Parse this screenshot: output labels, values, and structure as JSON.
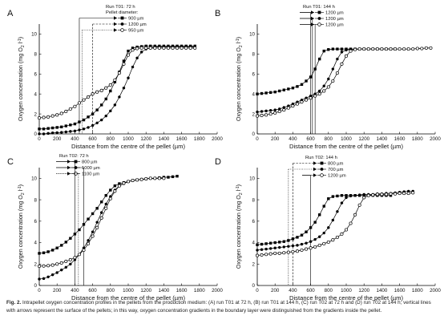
{
  "figure": {
    "caption_label": "Fig. 2.",
    "caption_text": "Intrapellet oxygen concentration profiles in the pellets from the production medium: (A) run T01 at 72 h, (B) run T01 at 144 h, (C) run T02 at 72 h and (D) run T02 at 144 h; vertical lines with arrows represent the surface of the pellets; in this way, oxygen concentration gradients in the boundary layer were distinguished from the gradients inside the pellet."
  },
  "chart_data": [
    {
      "type": "line",
      "panel_label": "A",
      "legend_title": "Run T01: 72 h",
      "legend_subtitle": "Pellet diameter:",
      "xlabel": "Distance from the centre of the pellet (µm)",
      "ylabel": "Oxygen concentration (mg O2 l-1)",
      "xlim": [
        0,
        2000
      ],
      "ylim": [
        0,
        11
      ],
      "xticks": [
        "0",
        "200",
        "400",
        "600",
        "800",
        "1000",
        "1200",
        "1400",
        "1600",
        "1800",
        "2000"
      ],
      "yticks": [
        "0",
        "2",
        "4",
        "6",
        "8",
        "10"
      ],
      "series": [
        {
          "name": "900 µm",
          "marker": "square",
          "surface": 450,
          "x": [
            0,
            50,
            100,
            150,
            200,
            250,
            300,
            350,
            400,
            450,
            500,
            550,
            600,
            650,
            700,
            750,
            800,
            850,
            900,
            950,
            1000,
            1050,
            1100,
            1150,
            1200,
            1250,
            1300,
            1350,
            1400,
            1450,
            1500,
            1550,
            1600,
            1650,
            1700,
            1750
          ],
          "y": [
            0.5,
            0.5,
            0.55,
            0.6,
            0.65,
            0.7,
            0.8,
            0.9,
            1.0,
            1.2,
            1.4,
            1.7,
            2.0,
            2.4,
            2.9,
            3.5,
            4.3,
            5.2,
            6.2,
            7.3,
            8.3,
            8.6,
            8.7,
            8.75,
            8.8,
            8.8,
            8.8,
            8.8,
            8.8,
            8.8,
            8.8,
            8.8,
            8.8,
            8.8,
            8.8,
            8.8
          ]
        },
        {
          "name": "1200 µm",
          "marker": "circle-filled",
          "surface": 600,
          "x": [
            0,
            50,
            100,
            150,
            200,
            250,
            300,
            350,
            400,
            450,
            500,
            550,
            600,
            650,
            700,
            750,
            800,
            850,
            900,
            950,
            1000,
            1050,
            1100,
            1150,
            1200,
            1250,
            1300,
            1350,
            1400,
            1450,
            1500,
            1550,
            1600,
            1650,
            1700,
            1750
          ],
          "y": [
            0.0,
            0.0,
            0.05,
            0.1,
            0.12,
            0.15,
            0.2,
            0.25,
            0.3,
            0.4,
            0.5,
            0.65,
            0.85,
            1.1,
            1.4,
            1.8,
            2.3,
            2.9,
            3.7,
            4.6,
            5.6,
            6.7,
            7.6,
            8.2,
            8.5,
            8.6,
            8.7,
            8.7,
            8.7,
            8.7,
            8.7,
            8.7,
            8.7,
            8.7,
            8.7,
            8.7
          ]
        },
        {
          "name": "950 µm",
          "marker": "circle-open",
          "surface": 480,
          "x": [
            0,
            50,
            100,
            150,
            200,
            250,
            300,
            350,
            400,
            450,
            500,
            550,
            600,
            650,
            700,
            750,
            800,
            850,
            900,
            950,
            1000,
            1050,
            1100,
            1150,
            1200,
            1250,
            1300,
            1350,
            1400,
            1450,
            1500,
            1550,
            1600,
            1650,
            1700,
            1750
          ],
          "y": [
            1.6,
            1.65,
            1.7,
            1.8,
            1.9,
            2.05,
            2.25,
            2.5,
            2.75,
            3.1,
            3.4,
            3.7,
            4.0,
            4.2,
            4.35,
            4.6,
            4.9,
            5.4,
            6.1,
            7.0,
            7.9,
            8.4,
            8.55,
            8.6,
            8.6,
            8.6,
            8.6,
            8.6,
            8.6,
            8.6,
            8.6,
            8.6,
            8.6,
            8.6,
            8.6,
            8.6
          ]
        }
      ]
    },
    {
      "type": "line",
      "panel_label": "B",
      "legend_title": "Run T01: 144 h",
      "xlabel": "Distance from the centre of the pellet (µm)",
      "ylabel": "Oxygen concentration (mg O2 l-1)",
      "xlim": [
        0,
        2000
      ],
      "ylim": [
        0,
        11
      ],
      "xticks": [
        "0",
        "200",
        "400",
        "600",
        "800",
        "1000",
        "1200",
        "1400",
        "1600",
        "1800",
        "2000"
      ],
      "yticks": [
        "0",
        "2",
        "4",
        "6",
        "8",
        "10"
      ],
      "series": [
        {
          "name": "1200 µm",
          "marker": "square",
          "surface": 600,
          "x": [
            0,
            50,
            100,
            150,
            200,
            250,
            300,
            350,
            400,
            450,
            500,
            550,
            600,
            650,
            700,
            750,
            800,
            850,
            900,
            950,
            1000,
            1050,
            1100,
            1150,
            1200,
            1250,
            1300,
            1350,
            1400,
            1450,
            1500,
            1550
          ],
          "y": [
            4.0,
            4.05,
            4.1,
            4.15,
            4.2,
            4.3,
            4.4,
            4.5,
            4.6,
            4.75,
            4.95,
            5.3,
            5.7,
            6.5,
            7.5,
            8.3,
            8.45,
            8.5,
            8.5,
            8.5,
            8.5,
            8.5,
            8.5,
            8.5,
            8.5,
            8.5,
            8.5,
            8.5,
            8.5,
            8.5,
            8.5,
            8.5
          ]
        },
        {
          "name": "1200 µm",
          "marker": "circle-filled",
          "surface": 620,
          "x": [
            0,
            50,
            100,
            150,
            200,
            250,
            300,
            350,
            400,
            450,
            500,
            550,
            600,
            650,
            700,
            750,
            800,
            850,
            900,
            950,
            1000,
            1050,
            1100,
            1150,
            1200,
            1250,
            1300,
            1350,
            1400,
            1450,
            1500,
            1550
          ],
          "y": [
            2.2,
            2.25,
            2.3,
            2.35,
            2.4,
            2.5,
            2.65,
            2.8,
            3.0,
            3.2,
            3.4,
            3.6,
            3.8,
            4.0,
            4.3,
            4.8,
            5.5,
            6.5,
            7.5,
            8.2,
            8.4,
            8.45,
            8.5,
            8.5,
            8.5,
            8.5,
            8.5,
            8.5,
            8.5,
            8.5,
            8.5,
            8.5
          ]
        },
        {
          "name": "1200 µm",
          "marker": "circle-open",
          "surface": 650,
          "x": [
            0,
            50,
            100,
            150,
            200,
            250,
            300,
            350,
            400,
            450,
            500,
            550,
            600,
            650,
            700,
            750,
            800,
            850,
            900,
            950,
            1000,
            1050,
            1100,
            1150,
            1200,
            1250,
            1300,
            1350,
            1400,
            1450,
            1500,
            1550,
            1600,
            1650,
            1700,
            1750,
            1800,
            1850,
            1900,
            1950
          ],
          "y": [
            1.8,
            1.85,
            1.9,
            2.0,
            2.1,
            2.25,
            2.4,
            2.6,
            2.8,
            3.0,
            3.2,
            3.4,
            3.6,
            3.8,
            4.0,
            4.3,
            4.7,
            5.3,
            6.1,
            7.0,
            7.8,
            8.3,
            8.45,
            8.5,
            8.5,
            8.5,
            8.5,
            8.5,
            8.5,
            8.5,
            8.5,
            8.5,
            8.5,
            8.5,
            8.5,
            8.5,
            8.55,
            8.55,
            8.6,
            8.6
          ]
        }
      ]
    },
    {
      "type": "line",
      "panel_label": "C",
      "legend_title": "Run T02: 72 h",
      "xlabel": "Distance from the centre of the pellet (µm)",
      "ylabel": "Oxygen concentration (mg O2 l-1)",
      "xlim": [
        0,
        2000
      ],
      "ylim": [
        0,
        11
      ],
      "xticks": [
        "0",
        "200",
        "400",
        "600",
        "800",
        "1000",
        "1200",
        "1400",
        "1600",
        "1800",
        "2000"
      ],
      "yticks": [
        "0",
        "2",
        "4",
        "6",
        "8",
        "10"
      ],
      "series": [
        {
          "name": "800 µm",
          "marker": "square",
          "surface": 400,
          "x": [
            0,
            50,
            100,
            150,
            200,
            250,
            300,
            350,
            400,
            450,
            500,
            550,
            600,
            650,
            700,
            750,
            800,
            850,
            900,
            950,
            1000,
            1050,
            1100,
            1150,
            1200,
            1250,
            1300,
            1350,
            1400,
            1450,
            1500,
            1550
          ],
          "y": [
            3.0,
            3.05,
            3.15,
            3.3,
            3.5,
            3.75,
            4.05,
            4.4,
            4.8,
            5.2,
            5.7,
            6.2,
            6.7,
            7.2,
            7.8,
            8.4,
            8.9,
            9.3,
            9.5,
            9.6,
            9.7,
            9.8,
            9.85,
            9.9,
            9.95,
            10.0,
            10.0,
            10.05,
            10.1,
            10.1,
            10.15,
            10.2
          ]
        },
        {
          "name": "1000 µm",
          "marker": "circle-filled",
          "surface": 500,
          "x": [
            0,
            50,
            100,
            150,
            200,
            250,
            300,
            350,
            400,
            450,
            500,
            550,
            600,
            650,
            700,
            750,
            800,
            850,
            900,
            950,
            1000,
            1050,
            1100,
            1150,
            1200,
            1250,
            1300,
            1350,
            1400
          ],
          "y": [
            0.6,
            0.65,
            0.8,
            1.0,
            1.2,
            1.45,
            1.7,
            2.0,
            2.4,
            2.9,
            3.5,
            4.2,
            5.0,
            5.9,
            6.8,
            7.6,
            8.3,
            8.9,
            9.3,
            9.5,
            9.7,
            9.8,
            9.85,
            9.9,
            9.95,
            10.0,
            10.0,
            10.0,
            10.0
          ]
        },
        {
          "name": "1100 µm",
          "marker": "circle-open",
          "surface": 440,
          "x": [
            0,
            50,
            100,
            150,
            200,
            250,
            300,
            350,
            400,
            450,
            500,
            550,
            600,
            650,
            700,
            750,
            800,
            850,
            900,
            950,
            1000,
            1050,
            1100,
            1150,
            1200,
            1250,
            1300,
            1350,
            1400
          ],
          "y": [
            1.8,
            1.82,
            1.85,
            1.9,
            2.0,
            2.1,
            2.25,
            2.4,
            2.6,
            2.9,
            3.3,
            3.9,
            4.6,
            5.4,
            6.3,
            7.2,
            8.1,
            8.8,
            9.3,
            9.55,
            9.7,
            9.8,
            9.85,
            9.9,
            9.95,
            10.0,
            10.0,
            10.0,
            10.0
          ]
        }
      ]
    },
    {
      "type": "line",
      "panel_label": "D",
      "legend_title": "Run T02: 144 h",
      "xlabel": "Distance from the centre of the pellet (µm)",
      "ylabel": "Oxygen concentration (mg O2 l-1)",
      "xlim": [
        0,
        2000
      ],
      "ylim": [
        0,
        11
      ],
      "xticks": [
        "0",
        "200",
        "400",
        "600",
        "800",
        "1000",
        "1200",
        "1400",
        "1600",
        "1800",
        "2000"
      ],
      "yticks": [
        "0",
        "2",
        "4",
        "6",
        "8",
        "10"
      ],
      "series": [
        {
          "name": "800 µm",
          "marker": "square",
          "surface": 400,
          "x": [
            0,
            50,
            100,
            150,
            200,
            250,
            300,
            350,
            400,
            450,
            500,
            550,
            600,
            650,
            700,
            750,
            800,
            850,
            900,
            950,
            1000,
            1050,
            1100,
            1150,
            1200,
            1250,
            1300,
            1350,
            1400,
            1450,
            1500
          ],
          "y": [
            3.8,
            3.85,
            3.9,
            3.95,
            4.0,
            4.05,
            4.1,
            4.2,
            4.35,
            4.5,
            4.7,
            5.0,
            5.4,
            5.9,
            6.6,
            7.4,
            8.1,
            8.3,
            8.35,
            8.4,
            8.4,
            8.4,
            8.4,
            8.4,
            8.4,
            8.4,
            8.4,
            8.4,
            8.4,
            8.4,
            8.4
          ]
        },
        {
          "name": "700 µm",
          "marker": "circle-filled",
          "surface": 350,
          "x": [
            0,
            50,
            100,
            150,
            200,
            250,
            300,
            350,
            400,
            450,
            500,
            550,
            600,
            650,
            700,
            750,
            800,
            850,
            900,
            950,
            1000,
            1050,
            1100,
            1150,
            1200,
            1250,
            1300,
            1350,
            1400,
            1450,
            1500,
            1550,
            1600,
            1650,
            1700,
            1750
          ],
          "y": [
            3.3,
            3.35,
            3.4,
            3.45,
            3.5,
            3.55,
            3.6,
            3.65,
            3.7,
            3.75,
            3.85,
            3.95,
            4.1,
            4.3,
            4.55,
            4.9,
            5.4,
            6.1,
            6.9,
            7.7,
            8.2,
            8.35,
            8.4,
            8.45,
            8.5,
            8.5,
            8.5,
            8.55,
            8.55,
            8.6,
            8.6,
            8.65,
            8.7,
            8.75,
            8.8,
            8.8
          ]
        },
        {
          "name": "1200 µm",
          "marker": "circle-open",
          "surface": 600,
          "x": [
            0,
            50,
            100,
            150,
            200,
            250,
            300,
            350,
            400,
            450,
            500,
            550,
            600,
            650,
            700,
            750,
            800,
            850,
            900,
            950,
            1000,
            1050,
            1100,
            1150,
            1200,
            1250,
            1300,
            1350,
            1400,
            1450,
            1500,
            1550,
            1600,
            1650,
            1700,
            1750
          ],
          "y": [
            2.8,
            2.85,
            2.9,
            2.95,
            3.0,
            3.0,
            3.05,
            3.1,
            3.15,
            3.2,
            3.3,
            3.4,
            3.5,
            3.6,
            3.75,
            3.9,
            4.05,
            4.25,
            4.5,
            4.8,
            5.2,
            5.8,
            6.6,
            7.5,
            8.2,
            8.4,
            8.45,
            8.5,
            8.5,
            8.5,
            8.55,
            8.55,
            8.6,
            8.6,
            8.6,
            8.65
          ]
        }
      ]
    }
  ]
}
